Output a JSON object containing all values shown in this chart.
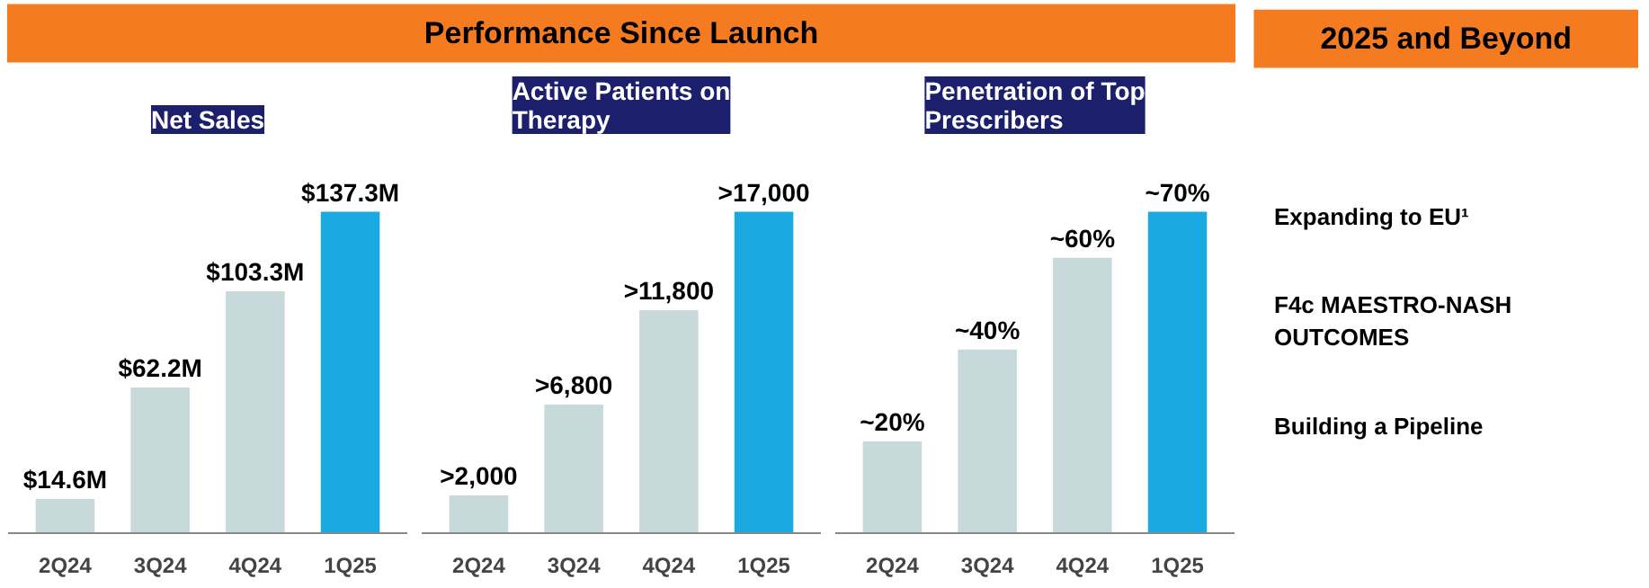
{
  "chart_data": [
    {
      "type": "bar",
      "title": "Net Sales",
      "annotations": [
        "Performance Since Launch"
      ],
      "categories": [
        "2Q24",
        "3Q24",
        "4Q24",
        "1Q25"
      ],
      "values": [
        14.6,
        62.2,
        103.3,
        137.3
      ],
      "value_labels": [
        "$14.6M",
        "$62.2M",
        "$103.3M",
        "$137.3M"
      ],
      "colors": [
        "#c8d9dc",
        "#c8d9dc",
        "#c8d9dc",
        "#1aa9e1"
      ]
    },
    {
      "type": "bar",
      "title": "Active Patients on Therapy",
      "categories": [
        "2Q24",
        "3Q24",
        "4Q24",
        "1Q25"
      ],
      "values": [
        2000,
        6800,
        11800,
        17000
      ],
      "value_labels": [
        ">2,000",
        ">6,800",
        ">11,800",
        ">17,000"
      ],
      "colors": [
        "#c8d9dc",
        "#c8d9dc",
        "#c8d9dc",
        "#1aa9e1"
      ]
    },
    {
      "type": "bar",
      "title": "Penetration of Top Prescribers",
      "categories": [
        "2Q24",
        "3Q24",
        "4Q24",
        "1Q25"
      ],
      "values": [
        20,
        40,
        60,
        70
      ],
      "value_labels": [
        "~20%",
        "~40%",
        "~60%",
        "~70%"
      ],
      "colors": [
        "#c8d9dc",
        "#c8d9dc",
        "#c8d9dc",
        "#1aa9e1"
      ]
    },
    {
      "type": "other",
      "title": "2025 and Beyond",
      "annotations": [
        "Expanding to EU¹",
        "F4c MAESTRO-NASH OUTCOMES",
        "Building a Pipeline"
      ]
    }
  ]
}
